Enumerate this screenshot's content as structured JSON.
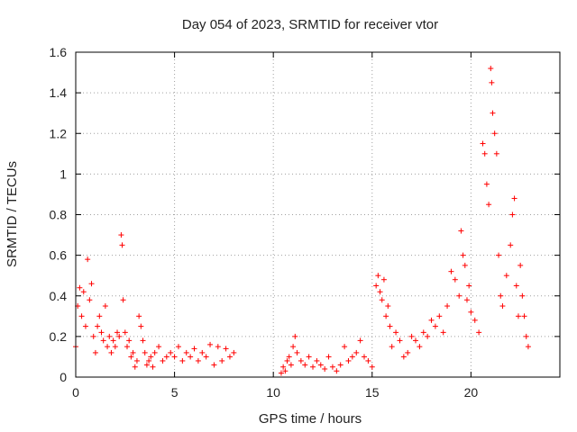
{
  "chart_data": {
    "type": "scatter",
    "title": "Day 054 of 2023, SRMTID for receiver vtor",
    "xlabel": "GPS time / hours",
    "ylabel": "SRMTID / TECUs",
    "xlim": [
      0,
      24.5
    ],
    "ylim": [
      0,
      1.6
    ],
    "xticks": [
      0,
      5,
      10,
      15,
      20
    ],
    "xtick_labels": [
      "0",
      "5",
      "10",
      "15",
      "20"
    ],
    "yticks": [
      0,
      0.2,
      0.4,
      0.6,
      0.8,
      1.0,
      1.2,
      1.4,
      1.6
    ],
    "ytick_labels": [
      "0",
      "0.2",
      "0.4",
      "0.6",
      "0.8",
      "1",
      "1.2",
      "1.4",
      "1.6"
    ],
    "grid": true,
    "marker": "plus",
    "color": "#ff0000",
    "series": [
      {
        "name": "SRMTID",
        "x": [
          0.0,
          0.1,
          0.2,
          0.3,
          0.4,
          0.5,
          0.6,
          0.7,
          0.8,
          0.9,
          1.0,
          1.1,
          1.2,
          1.3,
          1.4,
          1.5,
          1.6,
          1.7,
          1.8,
          1.9,
          2.0,
          2.1,
          2.2,
          2.3,
          2.35,
          2.4,
          2.5,
          2.6,
          2.7,
          2.8,
          2.9,
          3.0,
          3.1,
          3.2,
          3.3,
          3.4,
          3.5,
          3.6,
          3.7,
          3.8,
          3.9,
          4.0,
          4.2,
          4.4,
          4.6,
          4.8,
          5.0,
          5.2,
          5.4,
          5.6,
          5.8,
          6.0,
          6.2,
          6.4,
          6.6,
          6.8,
          7.0,
          7.2,
          7.4,
          7.6,
          7.8,
          8.0,
          10.4,
          10.5,
          10.6,
          10.7,
          10.8,
          10.9,
          11.0,
          11.1,
          11.2,
          11.4,
          11.6,
          11.8,
          12.0,
          12.2,
          12.4,
          12.6,
          12.8,
          13.0,
          13.2,
          13.4,
          13.6,
          13.8,
          14.0,
          14.2,
          14.4,
          14.6,
          14.8,
          15.0,
          15.2,
          15.3,
          15.4,
          15.5,
          15.6,
          15.7,
          15.8,
          15.9,
          16.0,
          16.2,
          16.4,
          16.6,
          16.8,
          17.0,
          17.2,
          17.4,
          17.6,
          17.8,
          18.0,
          18.2,
          18.4,
          18.6,
          18.8,
          19.0,
          19.2,
          19.4,
          19.5,
          19.6,
          19.7,
          19.8,
          19.9,
          20.0,
          20.2,
          20.4,
          20.6,
          20.7,
          20.8,
          20.9,
          21.0,
          21.05,
          21.1,
          21.2,
          21.3,
          21.4,
          21.5,
          21.6,
          21.8,
          22.0,
          22.1,
          22.2,
          22.3,
          22.4,
          22.5,
          22.6,
          22.7,
          22.8,
          22.9
        ],
        "y": [
          0.15,
          0.35,
          0.44,
          0.3,
          0.42,
          0.25,
          0.58,
          0.38,
          0.46,
          0.2,
          0.12,
          0.25,
          0.3,
          0.22,
          0.18,
          0.35,
          0.15,
          0.2,
          0.12,
          0.18,
          0.15,
          0.22,
          0.2,
          0.7,
          0.65,
          0.38,
          0.22,
          0.15,
          0.18,
          0.1,
          0.12,
          0.05,
          0.08,
          0.3,
          0.25,
          0.18,
          0.12,
          0.06,
          0.08,
          0.1,
          0.05,
          0.12,
          0.15,
          0.08,
          0.1,
          0.12,
          0.1,
          0.15,
          0.08,
          0.12,
          0.1,
          0.14,
          0.08,
          0.12,
          0.1,
          0.16,
          0.06,
          0.15,
          0.08,
          0.14,
          0.1,
          0.12,
          0.02,
          0.05,
          0.03,
          0.08,
          0.1,
          0.06,
          0.15,
          0.2,
          0.12,
          0.08,
          0.06,
          0.1,
          0.05,
          0.08,
          0.06,
          0.04,
          0.1,
          0.05,
          0.03,
          0.06,
          0.15,
          0.08,
          0.1,
          0.12,
          0.18,
          0.1,
          0.08,
          0.05,
          0.45,
          0.5,
          0.42,
          0.38,
          0.48,
          0.3,
          0.35,
          0.25,
          0.15,
          0.22,
          0.18,
          0.1,
          0.12,
          0.2,
          0.18,
          0.15,
          0.22,
          0.2,
          0.28,
          0.25,
          0.3,
          0.22,
          0.35,
          0.52,
          0.48,
          0.4,
          0.72,
          0.6,
          0.55,
          0.38,
          0.45,
          0.32,
          0.28,
          0.22,
          1.15,
          1.1,
          0.95,
          0.85,
          1.52,
          1.45,
          1.3,
          1.2,
          1.1,
          0.6,
          0.4,
          0.35,
          0.5,
          0.65,
          0.8,
          0.88,
          0.45,
          0.3,
          0.55,
          0.4,
          0.3,
          0.2,
          0.15
        ]
      }
    ]
  }
}
